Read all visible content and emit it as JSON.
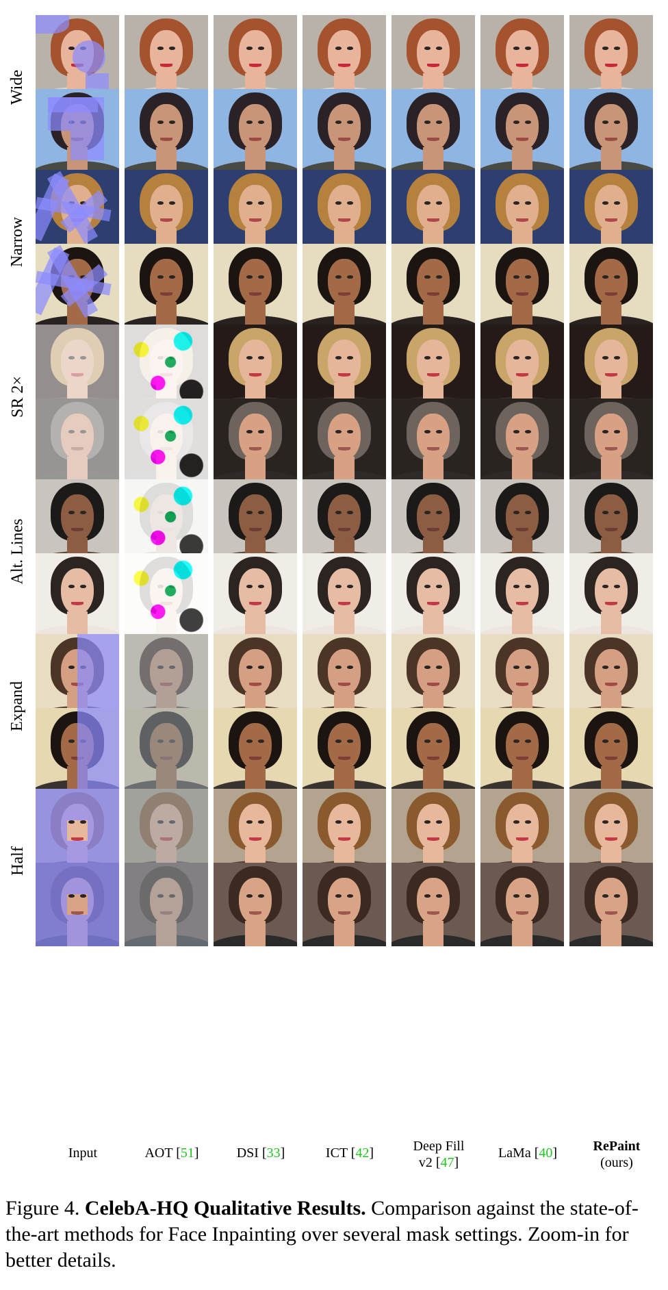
{
  "rows": [
    {
      "label": "Wide"
    },
    {
      "label": "Narrow"
    },
    {
      "label": "SR 2×"
    },
    {
      "label": "Alt. Lines"
    },
    {
      "label": "Expand"
    },
    {
      "label": "Half"
    }
  ],
  "columns": [
    {
      "line1": "Input",
      "line2": "",
      "ref": ""
    },
    {
      "line1": "AOT [",
      "ref": "51",
      "line1_end": "]"
    },
    {
      "line1": "DSI [",
      "ref": "33",
      "line1_end": "]"
    },
    {
      "line1": "ICT [",
      "ref": "42",
      "line1_end": "]"
    },
    {
      "line1": "Deep Fill",
      "line2": "v2 [",
      "ref": "47",
      "line2_end": "]"
    },
    {
      "line1": "LaMa [",
      "ref": "40",
      "line1_end": "]"
    },
    {
      "line1": "RePaint",
      "line2": "(ours)"
    }
  ],
  "caption": {
    "prefix": "Figure 4.",
    "title": "CelebA-HQ Qualitative Results.",
    "body": "Comparison against the state-of-the-art methods for Face Inpainting over several mask settings. Zoom-in for better details."
  }
}
